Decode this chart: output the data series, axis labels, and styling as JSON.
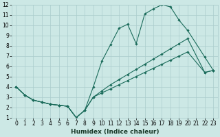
{
  "xlabel": "Humidex (Indice chaleur)",
  "bg_color": "#cce8e5",
  "grid_color": "#aacccc",
  "line_color": "#1a6b5a",
  "xlim": [
    -0.5,
    23.5
  ],
  "ylim": [
    1,
    12
  ],
  "xtick_vals": [
    0,
    1,
    2,
    3,
    4,
    5,
    6,
    7,
    8,
    9,
    10,
    11,
    12,
    13,
    14,
    15,
    16,
    17,
    18,
    19,
    20,
    21,
    22,
    23
  ],
  "ytick_vals": [
    1,
    2,
    3,
    4,
    5,
    6,
    7,
    8,
    9,
    10,
    11,
    12
  ],
  "line1_x": [
    0,
    1,
    2,
    3,
    4,
    5,
    6,
    7,
    8,
    9,
    10,
    11,
    12,
    13,
    14,
    15,
    16,
    17,
    18,
    19,
    20,
    22,
    23
  ],
  "line1_y": [
    4.0,
    3.2,
    2.7,
    2.5,
    2.3,
    2.2,
    2.1,
    1.0,
    1.7,
    4.0,
    6.5,
    8.1,
    9.7,
    10.1,
    8.2,
    11.1,
    11.6,
    12.0,
    11.8,
    10.5,
    9.5,
    6.9,
    5.6
  ],
  "line2_x": [
    0,
    1,
    2,
    3,
    4,
    5,
    6,
    7,
    8,
    9,
    10,
    11,
    12,
    13,
    14,
    15,
    16,
    17,
    18,
    19,
    20,
    22,
    23
  ],
  "line2_y": [
    4.0,
    3.2,
    2.7,
    2.5,
    2.3,
    2.2,
    2.1,
    1.0,
    1.7,
    3.0,
    3.6,
    4.2,
    4.7,
    5.2,
    5.7,
    6.2,
    6.7,
    7.2,
    7.7,
    8.2,
    8.7,
    5.4,
    5.6
  ],
  "line3_x": [
    0,
    1,
    2,
    3,
    4,
    5,
    6,
    7,
    8,
    9,
    10,
    11,
    12,
    13,
    14,
    15,
    16,
    17,
    18,
    19,
    20,
    22,
    23
  ],
  "line3_y": [
    4.0,
    3.2,
    2.7,
    2.5,
    2.3,
    2.2,
    2.1,
    1.0,
    1.7,
    3.0,
    3.4,
    3.8,
    4.2,
    4.6,
    5.0,
    5.4,
    5.8,
    6.2,
    6.6,
    7.0,
    7.4,
    5.4,
    5.6
  ],
  "marker_style": "D",
  "marker_size": 1.8,
  "line_width": 0.8,
  "xlabel_fontsize": 6.5,
  "tick_fontsize": 5.5
}
